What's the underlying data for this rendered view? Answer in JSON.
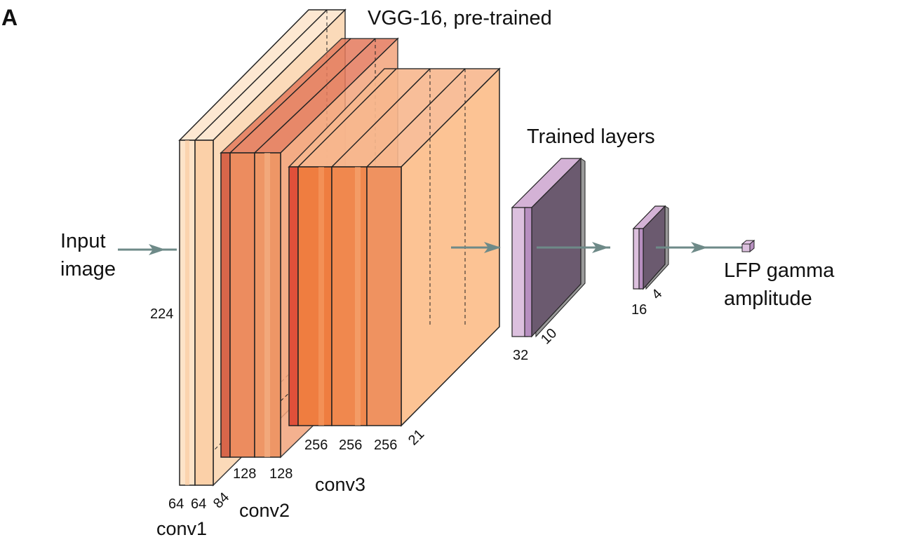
{
  "panel_letter": "A",
  "titles": {
    "pretrained": "VGG-16, pre-trained",
    "trained": "Trained layers"
  },
  "input_label": {
    "line1": "Input",
    "line2": "image"
  },
  "output_label": {
    "line1": "LFP gamma",
    "line2": "amplitude"
  },
  "group_labels": {
    "conv1": "conv1",
    "conv2": "conv2",
    "conv3": "conv3"
  },
  "dim_labels": {
    "conv1_height": "224",
    "conv1_a": "64",
    "conv1_b": "64",
    "conv1_spatial": "84",
    "conv2_a": "128",
    "conv2_b": "128",
    "conv3_a": "256",
    "conv3_b": "256",
    "conv3_c": "256",
    "conv3_spatial": "21",
    "fc1_width": "32",
    "fc1_depth": "10",
    "fc2_width": "16",
    "fc2_depth": "4"
  },
  "colors": {
    "conv1_front": "#fde3c8",
    "conv1_mid": "#fbd0a8",
    "conv2_front": "#ec8c5f",
    "conv2_side": "#d8664a",
    "conv3_front": "#ef7d40",
    "conv3_side": "#e0503a",
    "conv3_back": "#fcc394",
    "trained_front": "#6b5a6f",
    "trained_side": "#d4b2d6",
    "trained_edge": "#b78fc0",
    "arrow": "#6e8a88"
  }
}
